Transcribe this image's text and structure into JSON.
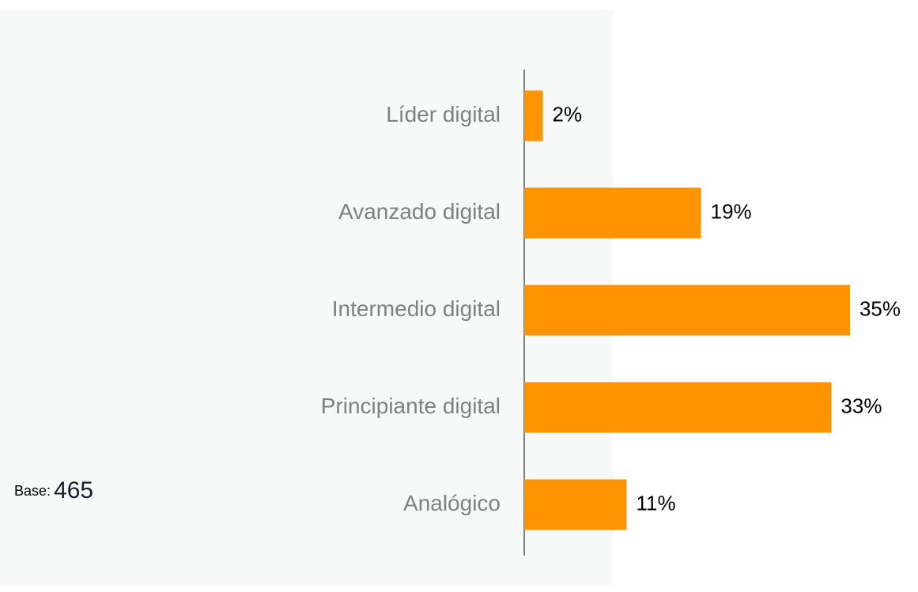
{
  "chart_data": {
    "type": "bar",
    "orientation": "horizontal",
    "categories": [
      "Líder digital",
      "Avanzado digital",
      "Intermedio digital",
      "Principiante digital",
      "Analógico"
    ],
    "values": [
      2,
      19,
      35,
      33,
      11
    ],
    "value_labels": [
      "2%",
      "19%",
      "35%",
      "33%",
      "11%"
    ],
    "color": "#ff9300",
    "annotation": {
      "label": "Base:",
      "value": "465"
    }
  }
}
